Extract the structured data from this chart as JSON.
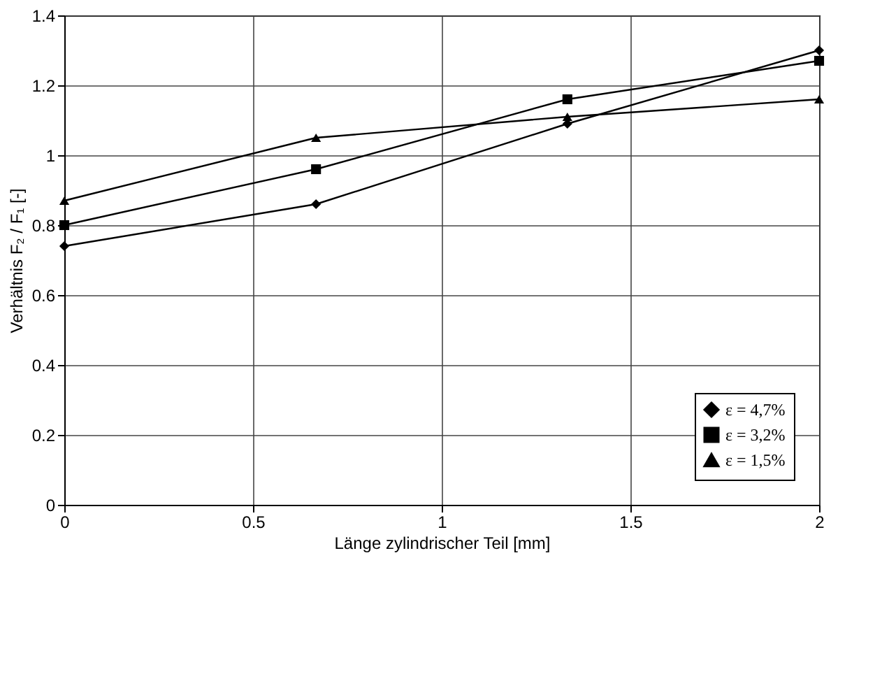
{
  "chart_data": {
    "type": "line",
    "xlabel": "Länge zylindrischer Teil [mm]",
    "ylabel": "Verhältnis F₂ / F₁ [-]",
    "xlim": [
      0,
      2
    ],
    "xticks": [
      0,
      0.5,
      1,
      1.5,
      2
    ],
    "ylim": [
      0,
      1.4
    ],
    "yticks": [
      0,
      0.2,
      0.4,
      0.6,
      0.8,
      1,
      1.2,
      1.4
    ],
    "grid": true,
    "legend": "bottom right",
    "line_style": "solid",
    "series": [
      {
        "name": "ε = 4,7%",
        "color": "#000000",
        "marker": "diamond",
        "x": [
          0,
          0.667,
          1.333,
          2
        ],
        "values": [
          0.74,
          0.86,
          1.09,
          1.3
        ]
      },
      {
        "name": "ε = 3,2%",
        "color": "#000000",
        "marker": "square",
        "x": [
          0,
          0.667,
          1.333,
          2
        ],
        "values": [
          0.8,
          0.96,
          1.16,
          1.27
        ]
      },
      {
        "name": "ε = 1,5%",
        "color": "#000000",
        "marker": "triangle",
        "x": [
          0,
          0.667,
          1.333,
          2
        ],
        "values": [
          0.87,
          1.05,
          1.11,
          1.16
        ]
      }
    ]
  }
}
